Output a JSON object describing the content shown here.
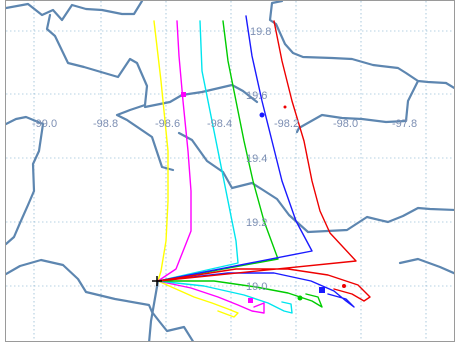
{
  "map": {
    "longitude_labels": [
      "-99.0",
      "-98.8",
      "-98.6",
      "-98.4",
      "-98.2",
      "-98.0",
      "-97.8"
    ],
    "latitude_labels": [
      "19.8",
      "19.6",
      "19.4",
      "19.2",
      "19.0"
    ],
    "origin_marker": "plus-icon",
    "trajectory_colors": [
      "#ffff00",
      "#ff00ff",
      "#00e5ee",
      "#00cc00",
      "#1a1aff",
      "#ee0000"
    ]
  }
}
